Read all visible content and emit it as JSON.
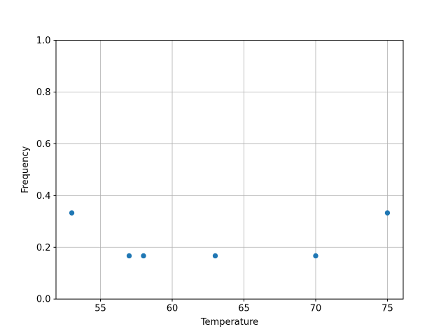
{
  "chart_data": {
    "type": "scatter",
    "title": "",
    "xlabel": "Temperature",
    "ylabel": "Frequency",
    "x": [
      53,
      57,
      58,
      63,
      70,
      75
    ],
    "y": [
      0.333,
      0.167,
      0.167,
      0.167,
      0.167,
      0.333
    ],
    "xlim": [
      51.9,
      76.1
    ],
    "ylim": [
      0.0,
      1.0
    ],
    "xticks": [
      {
        "value": 55,
        "label": "55"
      },
      {
        "value": 60,
        "label": "60"
      },
      {
        "value": 65,
        "label": "65"
      },
      {
        "value": 70,
        "label": "70"
      },
      {
        "value": 75,
        "label": "75"
      }
    ],
    "yticks": [
      {
        "value": 0.0,
        "label": "0.0"
      },
      {
        "value": 0.2,
        "label": "0.2"
      },
      {
        "value": 0.4,
        "label": "0.4"
      },
      {
        "value": 0.6,
        "label": "0.6"
      },
      {
        "value": 0.8,
        "label": "0.8"
      },
      {
        "value": 1.0,
        "label": "1.0"
      }
    ],
    "grid": true,
    "legend": "none",
    "colors": {
      "marker": "#1f77b4",
      "grid": "#b0b0b0",
      "spine": "#000000",
      "tick": "#000000",
      "text": "#000000",
      "background": "#ffffff"
    }
  }
}
